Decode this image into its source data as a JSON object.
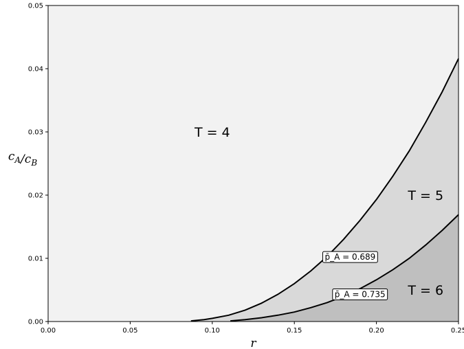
{
  "chart_data": {
    "type": "area",
    "xlabel": "r",
    "ylabel": "c_A/c_B",
    "xlim": [
      0.0,
      0.25
    ],
    "ylim": [
      0.0,
      0.05
    ],
    "x_ticks": [
      "0.00",
      "0.05",
      "0.10",
      "0.15",
      "0.20",
      "0.25"
    ],
    "y_ticks": [
      "0.00",
      "0.01",
      "0.02",
      "0.03",
      "0.04",
      "0.05"
    ],
    "grid": false,
    "regions": [
      {
        "label": "T = 4",
        "color": "#f2f2f2",
        "label_pos": {
          "x": 0.1,
          "y": 0.03
        }
      },
      {
        "label": "T = 5",
        "color": "#d9d9d9",
        "label_pos": {
          "x": 0.23,
          "y": 0.02
        }
      },
      {
        "label": "T = 6",
        "color": "#bfbfbf",
        "label_pos": {
          "x": 0.23,
          "y": 0.005
        }
      }
    ],
    "series": [
      {
        "label": "p̄_A = 0.689",
        "label_pos": {
          "x": 0.184,
          "y": 0.0102
        },
        "x": [
          0.087,
          0.095,
          0.1,
          0.11,
          0.12,
          0.13,
          0.14,
          0.15,
          0.16,
          0.17,
          0.18,
          0.19,
          0.2,
          0.21,
          0.22,
          0.23,
          0.24,
          0.25
        ],
        "y": [
          0.0001,
          0.0003,
          0.0005,
          0.001,
          0.0018,
          0.0029,
          0.0043,
          0.006,
          0.008,
          0.0103,
          0.013,
          0.016,
          0.0193,
          0.023,
          0.027,
          0.0315,
          0.0363,
          0.0416
        ]
      },
      {
        "label": "p̄_A = 0.735",
        "label_pos": {
          "x": 0.19,
          "y": 0.0043
        },
        "x": [
          0.111,
          0.12,
          0.13,
          0.14,
          0.15,
          0.16,
          0.17,
          0.18,
          0.19,
          0.2,
          0.21,
          0.22,
          0.23,
          0.24,
          0.25
        ],
        "y": [
          0.0001,
          0.0003,
          0.0006,
          0.001,
          0.0015,
          0.0022,
          0.003,
          0.004,
          0.0052,
          0.0066,
          0.0082,
          0.01,
          0.0121,
          0.0144,
          0.0169
        ]
      }
    ],
    "curve_color": "#000000"
  }
}
